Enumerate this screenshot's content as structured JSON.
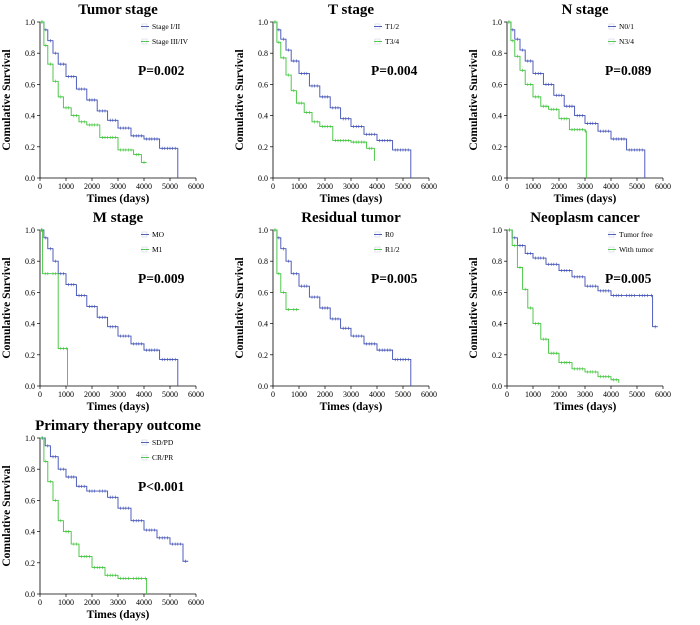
{
  "colors": {
    "blue": "#3f4fb5",
    "green": "#3ec43a",
    "axis": "#000000",
    "legend_box": "#cfd3ea"
  },
  "chart_data": [
    {
      "type": "line",
      "subtype": "kaplan-meier",
      "title": "Tumor stage",
      "xlabel": "Times (days)",
      "ylabel": "Comulative Survival",
      "xlim": [
        0,
        6000
      ],
      "ylim": [
        0,
        1.0
      ],
      "xticks": [
        "0",
        "1000",
        "2000",
        "3000",
        "4000",
        "5000",
        "6000"
      ],
      "yticks": [
        "0.0",
        "0.2",
        "0.4",
        "0.6",
        "0.8",
        "1.0"
      ],
      "pvalue": "P=0.002",
      "legend_position": "top-right",
      "series": [
        {
          "name": "Stage I/II",
          "color": "blue",
          "x": [
            0,
            150,
            300,
            500,
            700,
            1000,
            1400,
            1800,
            2200,
            2600,
            3000,
            3500,
            4000,
            4600,
            5300
          ],
          "y": [
            1.0,
            0.95,
            0.88,
            0.8,
            0.73,
            0.65,
            0.57,
            0.5,
            0.43,
            0.37,
            0.32,
            0.27,
            0.25,
            0.19,
            0.0
          ]
        },
        {
          "name": "Stage III/IV",
          "color": "green",
          "x": [
            0,
            150,
            300,
            500,
            700,
            900,
            1200,
            1500,
            1800,
            2300,
            3000,
            3600,
            3900,
            4100
          ],
          "y": [
            1.0,
            0.85,
            0.73,
            0.62,
            0.52,
            0.45,
            0.4,
            0.36,
            0.34,
            0.26,
            0.18,
            0.15,
            0.1,
            0.1
          ]
        }
      ]
    },
    {
      "type": "line",
      "subtype": "kaplan-meier",
      "title": "T stage",
      "xlabel": "Times (days)",
      "ylabel": "Comulative Survival",
      "xlim": [
        0,
        6000
      ],
      "ylim": [
        0,
        1.0
      ],
      "xticks": [
        "0",
        "1000",
        "2000",
        "3000",
        "4000",
        "5000",
        "6000"
      ],
      "yticks": [
        "0.0",
        "0.2",
        "0.4",
        "0.6",
        "0.8",
        "1.0"
      ],
      "pvalue": "P=0.004",
      "legend_position": "top-right",
      "series": [
        {
          "name": "T1/2",
          "color": "blue",
          "x": [
            0,
            150,
            300,
            500,
            700,
            1000,
            1400,
            1800,
            2200,
            2600,
            3000,
            3500,
            4000,
            4600,
            5300
          ],
          "y": [
            1.0,
            0.95,
            0.89,
            0.82,
            0.75,
            0.67,
            0.59,
            0.52,
            0.45,
            0.38,
            0.33,
            0.28,
            0.24,
            0.18,
            0.0
          ]
        },
        {
          "name": "T3/4",
          "color": "green",
          "x": [
            0,
            150,
            300,
            500,
            700,
            900,
            1200,
            1500,
            1800,
            2300,
            3000,
            3600,
            3900
          ],
          "y": [
            1.0,
            0.87,
            0.77,
            0.66,
            0.56,
            0.48,
            0.42,
            0.36,
            0.33,
            0.24,
            0.23,
            0.19,
            0.11
          ]
        }
      ]
    },
    {
      "type": "line",
      "subtype": "kaplan-meier",
      "title": "N stage",
      "xlabel": "Times (days)",
      "ylabel": "Comulative Survival",
      "xlim": [
        0,
        6000
      ],
      "ylim": [
        0,
        1.0
      ],
      "xticks": [
        "0",
        "1000",
        "2000",
        "3000",
        "4000",
        "5000",
        "6000"
      ],
      "yticks": [
        "0.0",
        "0.2",
        "0.4",
        "0.6",
        "0.8",
        "1.0"
      ],
      "pvalue": "P=0.089",
      "legend_position": "top-right",
      "series": [
        {
          "name": "N0/1",
          "color": "blue",
          "x": [
            0,
            150,
            300,
            500,
            700,
            1000,
            1400,
            1800,
            2200,
            2600,
            3000,
            3500,
            4000,
            4600,
            5300
          ],
          "y": [
            1.0,
            0.95,
            0.89,
            0.82,
            0.75,
            0.67,
            0.6,
            0.53,
            0.46,
            0.4,
            0.35,
            0.3,
            0.25,
            0.18,
            0.0
          ]
        },
        {
          "name": "N3/4",
          "color": "green",
          "x": [
            0,
            150,
            300,
            500,
            700,
            1000,
            1300,
            1600,
            2000,
            2400,
            3000,
            3050
          ],
          "y": [
            1.0,
            0.88,
            0.78,
            0.69,
            0.6,
            0.52,
            0.46,
            0.44,
            0.38,
            0.31,
            0.3,
            0.0
          ]
        }
      ]
    },
    {
      "type": "line",
      "subtype": "kaplan-meier",
      "title": "M stage",
      "xlabel": "Times (days)",
      "ylabel": "Comulative Survival",
      "xlim": [
        0,
        6000
      ],
      "ylim": [
        0,
        1.0
      ],
      "xticks": [
        "0",
        "1000",
        "2000",
        "3000",
        "4000",
        "5000",
        "6000"
      ],
      "yticks": [
        "0.0",
        "0.2",
        "0.4",
        "0.6",
        "0.8",
        "1.0"
      ],
      "pvalue": "P=0.009",
      "legend_position": "top-right",
      "series": [
        {
          "name": "MO",
          "color": "blue",
          "x": [
            0,
            150,
            300,
            500,
            700,
            1000,
            1400,
            1800,
            2200,
            2600,
            3000,
            3500,
            4000,
            4600,
            5300
          ],
          "y": [
            1.0,
            0.95,
            0.88,
            0.8,
            0.72,
            0.65,
            0.58,
            0.51,
            0.44,
            0.38,
            0.32,
            0.27,
            0.23,
            0.17,
            0.0
          ]
        },
        {
          "name": "M1",
          "color": "green",
          "x": [
            0,
            100,
            400,
            700,
            1000,
            1060
          ],
          "y": [
            1.0,
            0.72,
            0.72,
            0.24,
            0.24,
            0.0
          ]
        }
      ]
    },
    {
      "type": "line",
      "subtype": "kaplan-meier",
      "title": "Residual tumor",
      "xlabel": "Times (days)",
      "ylabel": "Comulative Survival",
      "xlim": [
        0,
        6000
      ],
      "ylim": [
        0,
        1.0
      ],
      "xticks": [
        "0",
        "1000",
        "2000",
        "3000",
        "4000",
        "5000",
        "6000"
      ],
      "yticks": [
        "0.0",
        "0.2",
        "0.4",
        "0.6",
        "0.8",
        "1.0"
      ],
      "pvalue": "P=0.005",
      "legend_position": "top-right",
      "series": [
        {
          "name": "R0",
          "color": "blue",
          "x": [
            0,
            150,
            300,
            500,
            700,
            1000,
            1400,
            1800,
            2200,
            2600,
            3000,
            3500,
            4000,
            4600,
            5300
          ],
          "y": [
            1.0,
            0.95,
            0.88,
            0.8,
            0.72,
            0.64,
            0.57,
            0.5,
            0.43,
            0.37,
            0.32,
            0.27,
            0.23,
            0.17,
            0.0
          ]
        },
        {
          "name": "R1/2",
          "color": "green",
          "x": [
            0,
            150,
            300,
            500,
            700,
            1000
          ],
          "y": [
            1.0,
            0.72,
            0.6,
            0.49,
            0.49,
            0.49
          ]
        }
      ]
    },
    {
      "type": "line",
      "subtype": "kaplan-meier",
      "title": "Neoplasm cancer",
      "xlabel": "Times (days)",
      "ylabel": "Comulative Survival",
      "xlim": [
        0,
        6000
      ],
      "ylim": [
        0,
        1.0
      ],
      "xticks": [
        "0",
        "1000",
        "2000",
        "3000",
        "4000",
        "5000",
        "6000"
      ],
      "yticks": [
        "0.0",
        "0.2",
        "0.4",
        "0.6",
        "0.8",
        "1.0"
      ],
      "pvalue": "P=0.005",
      "legend_position": "top-right",
      "series": [
        {
          "name": "Tumor free",
          "color": "blue",
          "x": [
            0,
            200,
            400,
            700,
            1000,
            1500,
            2000,
            2500,
            3000,
            3500,
            4000,
            4500,
            5000,
            5500,
            5600,
            5800
          ],
          "y": [
            1.0,
            0.95,
            0.9,
            0.85,
            0.82,
            0.78,
            0.74,
            0.7,
            0.64,
            0.61,
            0.58,
            0.58,
            0.58,
            0.58,
            0.38,
            0.38
          ]
        },
        {
          "name": "With tumor",
          "color": "green",
          "x": [
            0,
            200,
            400,
            600,
            800,
            1000,
            1300,
            1600,
            2000,
            2500,
            3000,
            3500,
            4000,
            4300
          ],
          "y": [
            1.0,
            0.9,
            0.76,
            0.62,
            0.5,
            0.4,
            0.3,
            0.21,
            0.15,
            0.11,
            0.09,
            0.06,
            0.04,
            0.02
          ]
        }
      ]
    },
    {
      "type": "line",
      "subtype": "kaplan-meier",
      "title": "Primary therapy outcome",
      "xlabel": "Times (days)",
      "ylabel": "Comulative Survival",
      "xlim": [
        0,
        6000
      ],
      "ylim": [
        0,
        1.0
      ],
      "xticks": [
        "0",
        "1000",
        "2000",
        "3000",
        "4000",
        "5000",
        "6000"
      ],
      "yticks": [
        "0.0",
        "0.2",
        "0.4",
        "0.6",
        "0.8",
        "1.0"
      ],
      "pvalue": "P<0.001",
      "legend_position": "top-right",
      "series": [
        {
          "name": "SD/PD",
          "color": "blue",
          "x": [
            0,
            200,
            400,
            700,
            1000,
            1400,
            1800,
            2200,
            2600,
            3000,
            3500,
            4000,
            4500,
            5000,
            5500,
            5700
          ],
          "y": [
            1.0,
            0.95,
            0.88,
            0.8,
            0.75,
            0.69,
            0.66,
            0.66,
            0.62,
            0.55,
            0.47,
            0.41,
            0.36,
            0.32,
            0.21,
            0.21
          ]
        },
        {
          "name": "CR/PR",
          "color": "green",
          "x": [
            0,
            150,
            300,
            500,
            700,
            900,
            1200,
            1500,
            2000,
            2500,
            3000,
            3500,
            4000,
            4100
          ],
          "y": [
            1.0,
            0.85,
            0.72,
            0.6,
            0.47,
            0.4,
            0.32,
            0.24,
            0.17,
            0.12,
            0.1,
            0.1,
            0.1,
            0.0
          ]
        }
      ]
    }
  ]
}
